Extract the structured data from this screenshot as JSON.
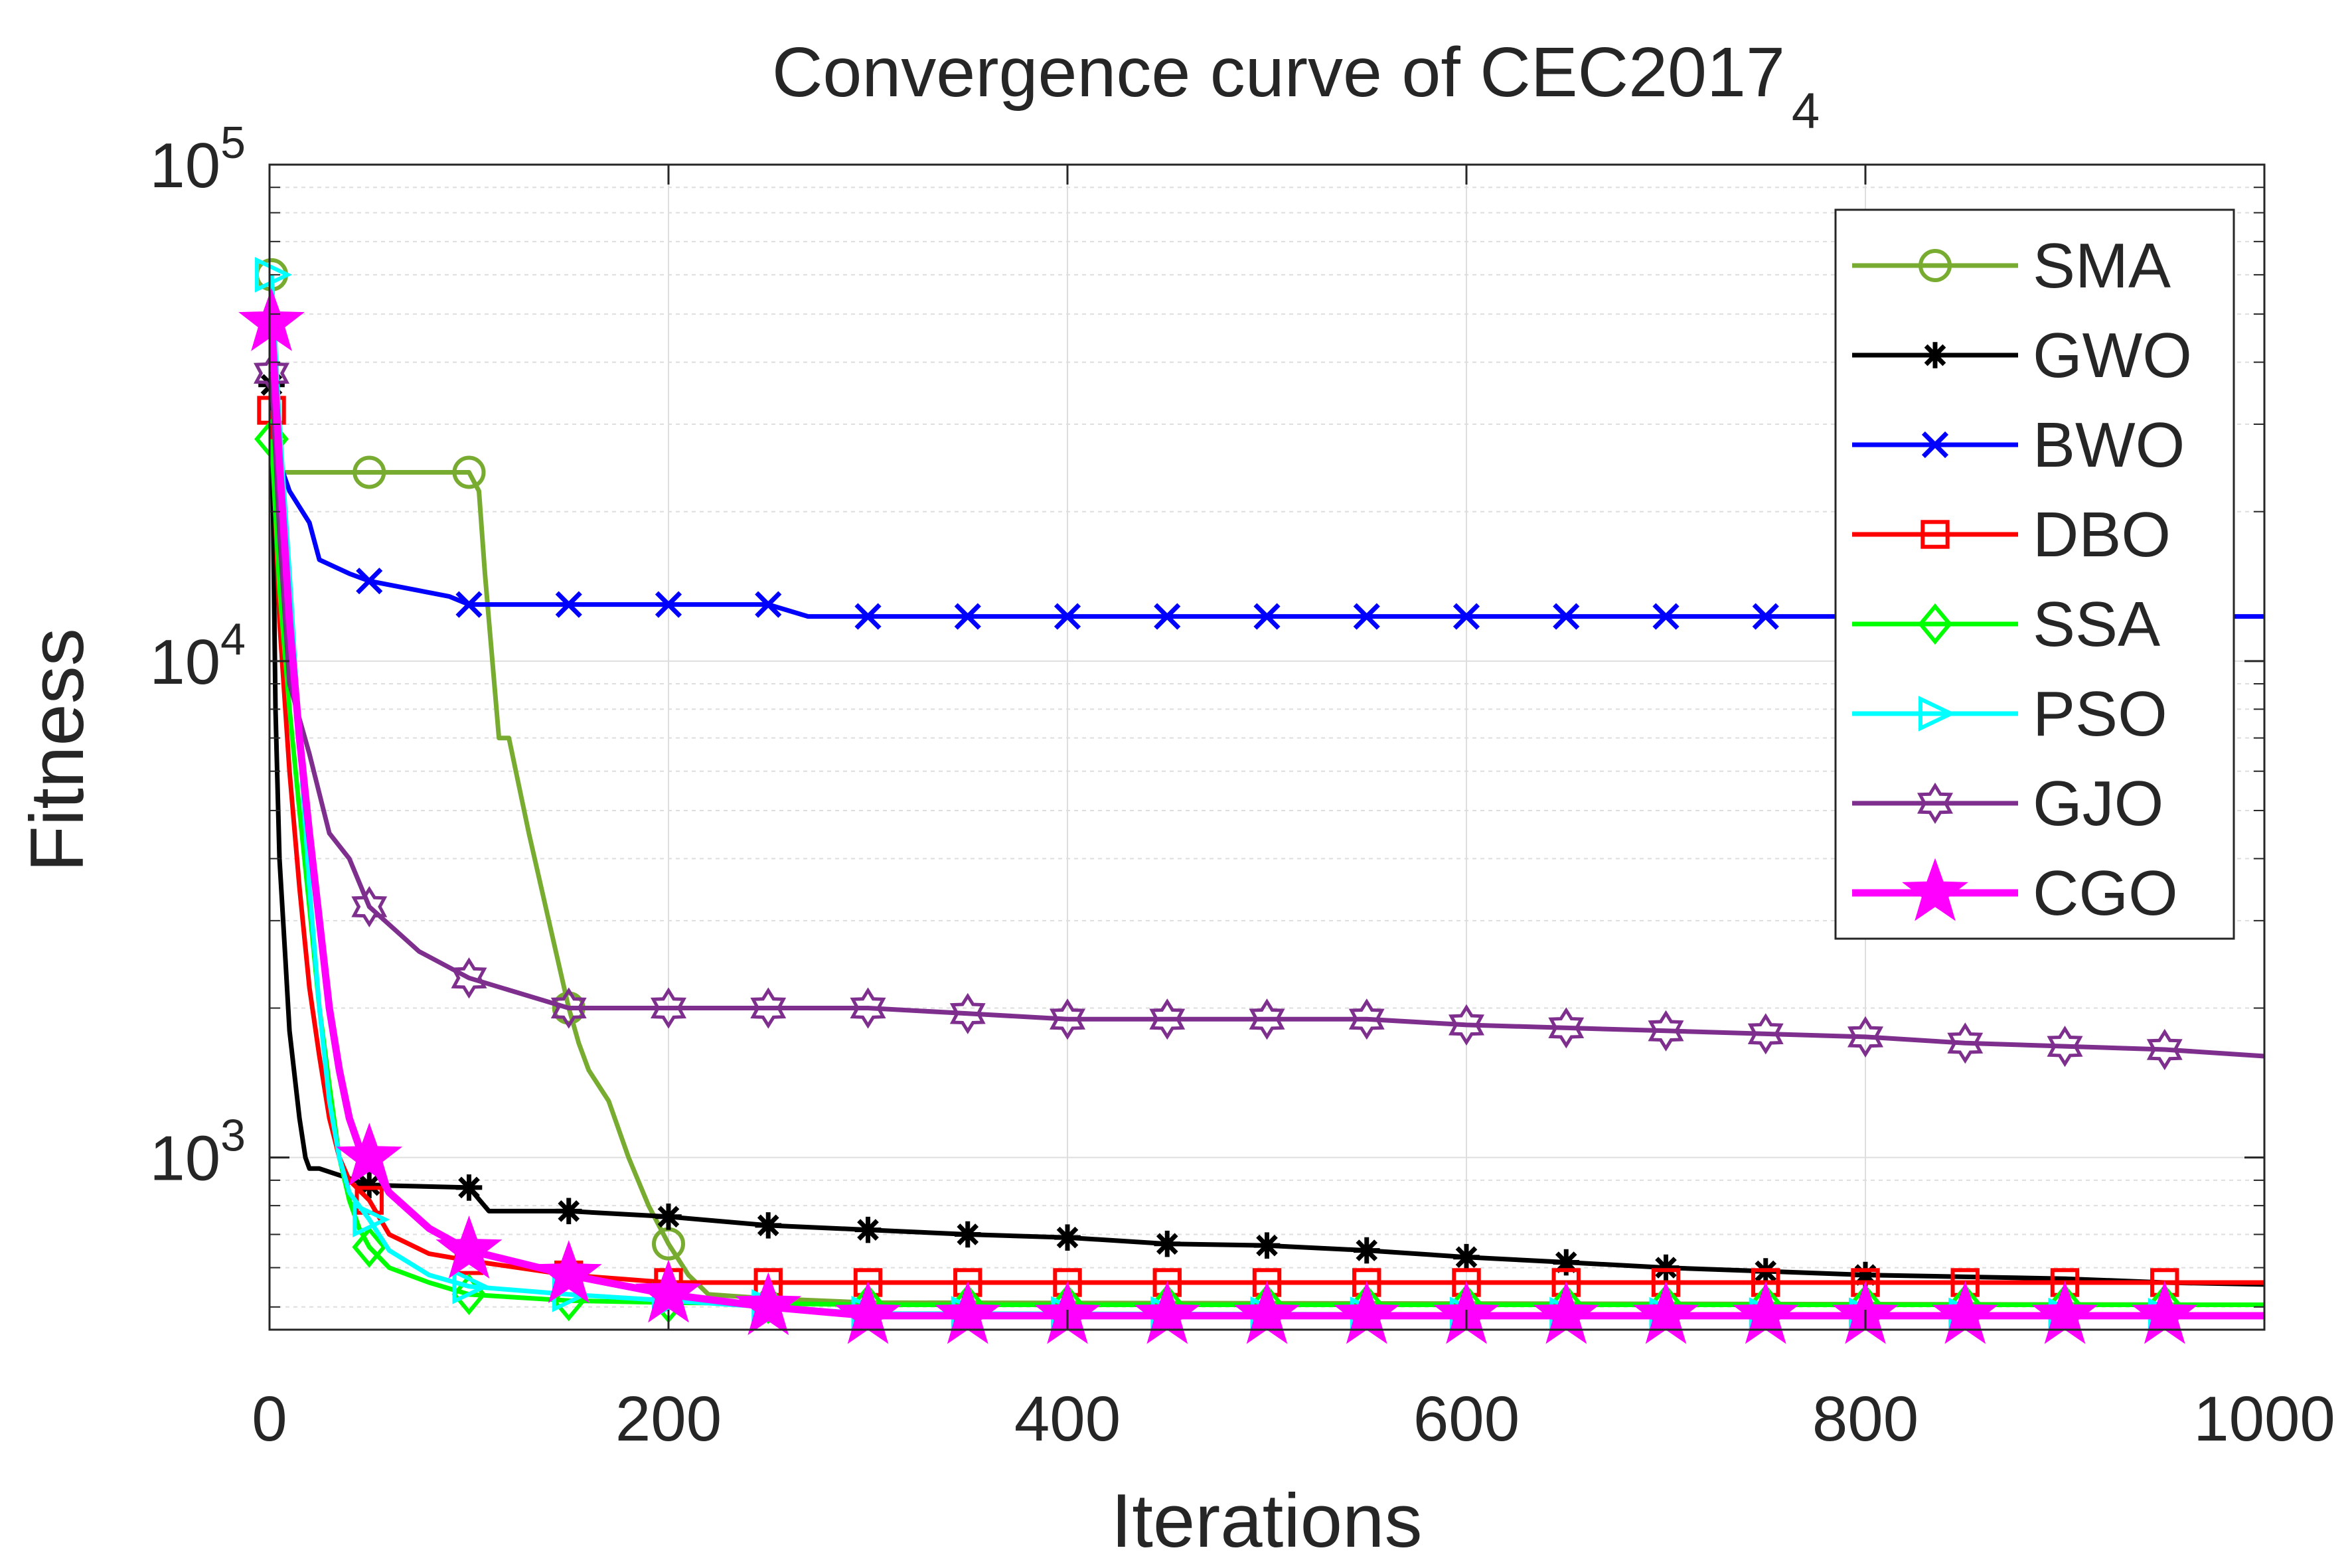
{
  "chart_data": {
    "type": "line",
    "title": "Convergence curve of CEC2017",
    "title_subscript": "4",
    "xlabel": "Iterations",
    "ylabel": "Fitness",
    "xlim": [
      0,
      1000
    ],
    "ylim": [
      450,
      100000
    ],
    "yscale": "log",
    "grid": true,
    "legend_position": "top-right",
    "x_ticks": [
      {
        "value": 0,
        "label": "0"
      },
      {
        "value": 200,
        "label": "200"
      },
      {
        "value": 400,
        "label": "400"
      },
      {
        "value": 600,
        "label": "600"
      },
      {
        "value": 800,
        "label": "800"
      },
      {
        "value": 1000,
        "label": "1000"
      }
    ],
    "y_ticks": [
      {
        "value": 1000,
        "base": "10",
        "exponent": "3"
      },
      {
        "value": 10000,
        "base": "10",
        "exponent": "4"
      },
      {
        "value": 100000,
        "base": "10",
        "exponent": "5"
      }
    ],
    "series": [
      {
        "name": "SMA",
        "color": "#77AC30",
        "marker": "circle",
        "marker_x": [
          1,
          50,
          100,
          150,
          200
        ],
        "x": [
          1,
          2,
          100,
          105,
          108,
          115,
          120,
          130,
          140,
          150,
          155,
          160,
          170,
          180,
          190,
          200,
          210,
          220,
          250,
          300,
          1000
        ],
        "y": [
          60000,
          24000,
          24000,
          22000,
          15000,
          7000,
          7000,
          4500,
          3000,
          2000,
          1700,
          1500,
          1300,
          1000,
          800,
          670,
          580,
          530,
          520,
          510,
          505
        ]
      },
      {
        "name": "GWO",
        "color": "#000000",
        "marker": "asterisk",
        "marker_x": [
          1,
          50,
          100,
          150,
          200,
          250,
          300,
          350,
          400,
          450,
          500,
          550,
          600,
          650,
          700,
          750,
          800
        ],
        "x": [
          1,
          3,
          5,
          8,
          10,
          15,
          18,
          20,
          25,
          50,
          100,
          110,
          150,
          200,
          250,
          300,
          350,
          400,
          450,
          500,
          550,
          600,
          650,
          700,
          750,
          800,
          850,
          900,
          950,
          1000
        ],
        "y": [
          36000,
          8000,
          4000,
          2500,
          1800,
          1200,
          1000,
          950,
          950,
          880,
          870,
          780,
          780,
          760,
          730,
          715,
          700,
          690,
          670,
          665,
          650,
          630,
          615,
          600,
          590,
          580,
          575,
          570,
          560,
          555
        ]
      },
      {
        "name": "BWO",
        "color": "#0000FF",
        "marker": "x",
        "marker_x": [
          50,
          100,
          150,
          200,
          250,
          300,
          350,
          400,
          450,
          500,
          550,
          600,
          650,
          700,
          750
        ],
        "x": [
          1,
          10,
          20,
          25,
          40,
          50,
          90,
          100,
          250,
          270,
          1000
        ],
        "y": [
          28000,
          22000,
          19000,
          16000,
          15000,
          14500,
          13500,
          13000,
          13000,
          12300,
          12300
        ]
      },
      {
        "name": "DBO",
        "color": "#FF0000",
        "marker": "square",
        "marker_x": [
          1,
          50,
          100,
          150,
          200,
          250,
          300,
          350,
          400,
          450,
          500,
          550,
          600,
          650,
          700,
          750,
          800,
          850,
          900,
          950
        ],
        "x": [
          1,
          5,
          10,
          15,
          20,
          25,
          30,
          35,
          40,
          50,
          60,
          80,
          100,
          150,
          200,
          1000
        ],
        "y": [
          32000,
          12000,
          6000,
          3500,
          2200,
          1600,
          1200,
          1000,
          900,
          820,
          700,
          640,
          620,
          580,
          560,
          560
        ]
      },
      {
        "name": "SSA",
        "color": "#00FF00",
        "marker": "diamond",
        "marker_x": [
          1,
          50,
          100,
          150,
          200,
          250,
          300,
          350,
          400,
          450,
          500,
          550,
          600,
          650,
          700,
          750,
          800,
          850,
          900,
          950
        ],
        "x": [
          1,
          5,
          10,
          15,
          20,
          25,
          30,
          35,
          40,
          45,
          50,
          60,
          80,
          100,
          150,
          200,
          250,
          300,
          1000
        ],
        "y": [
          28000,
          14000,
          8000,
          5000,
          3200,
          2000,
          1400,
          1000,
          820,
          720,
          660,
          600,
          560,
          530,
          515,
          510,
          508,
          505,
          505
        ]
      },
      {
        "name": "PSO",
        "color": "#00FFFF",
        "marker": "triangle-right",
        "marker_x": [
          1,
          50,
          100,
          150,
          200,
          250,
          300,
          350,
          400,
          450,
          500,
          550,
          600,
          650,
          700,
          750,
          800,
          850,
          900,
          950
        ],
        "x": [
          1,
          5,
          10,
          15,
          20,
          25,
          30,
          35,
          40,
          50,
          60,
          80,
          100,
          150,
          200,
          250,
          300,
          1000
        ],
        "y": [
          60000,
          30000,
          15000,
          7000,
          3500,
          2000,
          1300,
          1000,
          850,
          750,
          650,
          580,
          550,
          530,
          515,
          500,
          485,
          480
        ]
      },
      {
        "name": "GJO",
        "color": "#7E2F8E",
        "marker": "hexagram",
        "marker_x": [
          1,
          50,
          100,
          150,
          200,
          250,
          300,
          350,
          400,
          450,
          500,
          550,
          600,
          650,
          700,
          750,
          800,
          850,
          900,
          950
        ],
        "x": [
          1,
          5,
          10,
          20,
          30,
          40,
          50,
          75,
          100,
          150,
          200,
          300,
          350,
          400,
          550,
          600,
          700,
          800,
          850,
          950,
          1000
        ],
        "y": [
          38000,
          18000,
          9000,
          6500,
          4500,
          4000,
          3200,
          2600,
          2300,
          2000,
          2000,
          2000,
          1950,
          1900,
          1900,
          1850,
          1800,
          1750,
          1700,
          1650,
          1600
        ]
      },
      {
        "name": "CGO",
        "color": "#FF00FF",
        "marker": "pentagram",
        "marker_x": [
          1,
          50,
          100,
          150,
          200,
          250,
          300,
          350,
          400,
          450,
          500,
          550,
          600,
          650,
          700,
          750,
          800,
          850,
          900,
          950
        ],
        "x": [
          1,
          5,
          10,
          15,
          20,
          25,
          30,
          35,
          40,
          45,
          50,
          60,
          80,
          100,
          150,
          200,
          250,
          300,
          1000
        ],
        "y": [
          48000,
          25000,
          12000,
          7000,
          4500,
          3000,
          2000,
          1500,
          1200,
          1050,
          1000,
          850,
          720,
          650,
          580,
          530,
          500,
          480,
          480
        ]
      }
    ]
  }
}
